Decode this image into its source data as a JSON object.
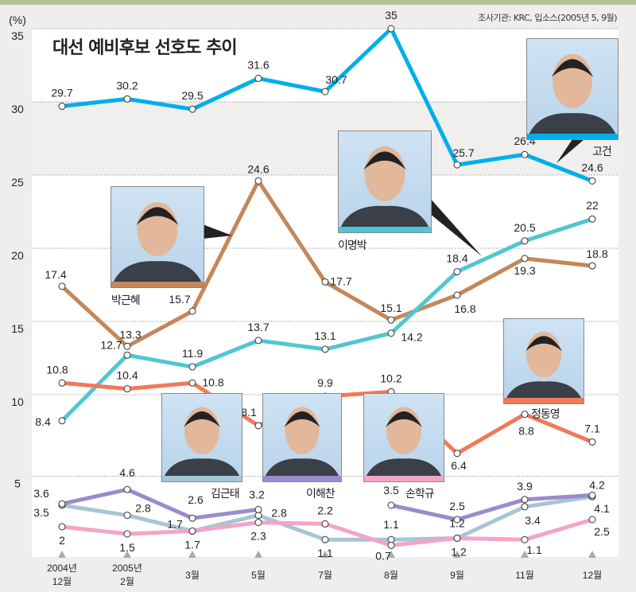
{
  "header": {
    "title": "대선 예비후보 선호도 추이",
    "source": "조사기관: KRC, 입소스(2005년 5, 9월)"
  },
  "chart_data": {
    "type": "line",
    "title": "대선 예비후보 선호도 추이",
    "ylabel": "(%)",
    "yticks": [
      "35",
      "30",
      "25",
      "20",
      "15",
      "10",
      "5"
    ],
    "ylim": [
      0,
      35
    ],
    "categories": [
      "2004년\n12월",
      "2005년\n2월",
      "3월",
      "5월",
      "7월",
      "8월",
      "9월",
      "11월",
      "12월"
    ],
    "category_lines": [
      [
        "2004년",
        "12월"
      ],
      [
        "2005년",
        "2월"
      ],
      [
        "3월"
      ],
      [
        "5월"
      ],
      [
        "7월"
      ],
      [
        "8월"
      ],
      [
        "9월"
      ],
      [
        "11월"
      ],
      [
        "12월"
      ]
    ],
    "grid": true,
    "series": [
      {
        "name": "고건",
        "color": "#00aeea",
        "values": [
          29.7,
          30.2,
          29.5,
          31.6,
          30.7,
          35,
          25.7,
          26.4,
          24.6
        ]
      },
      {
        "name": "박근혜",
        "color": "#c4875a",
        "values": [
          17.4,
          13.3,
          15.7,
          24.6,
          17.7,
          15.1,
          16.8,
          19.3,
          18.8
        ]
      },
      {
        "name": "이명박",
        "color": "#4fc7d2",
        "values": [
          8.4,
          12.7,
          11.9,
          13.7,
          13.1,
          14.2,
          18.4,
          20.5,
          22
        ]
      },
      {
        "name": "정동영",
        "color": "#f07a58",
        "values": [
          10.8,
          10.4,
          10.8,
          8.1,
          9.9,
          10.2,
          6.4,
          8.8,
          7.1
        ]
      },
      {
        "name": "김근태",
        "color": "#a6c6d4",
        "values": [
          3.5,
          2.8,
          1.7,
          2.8,
          1.1,
          1.1,
          1.2,
          3.4,
          4.1
        ]
      },
      {
        "name": "이해찬",
        "color": "#9a8ccc",
        "values": [
          3.6,
          4.6,
          2.6,
          3.2,
          null,
          3.5,
          2.5,
          3.9,
          4.2
        ]
      },
      {
        "name": "손학규",
        "color": "#f3a4c8",
        "values": [
          2,
          1.5,
          1.7,
          2.3,
          2.2,
          0.7,
          1.2,
          1.1,
          2.5
        ]
      }
    ]
  }
}
